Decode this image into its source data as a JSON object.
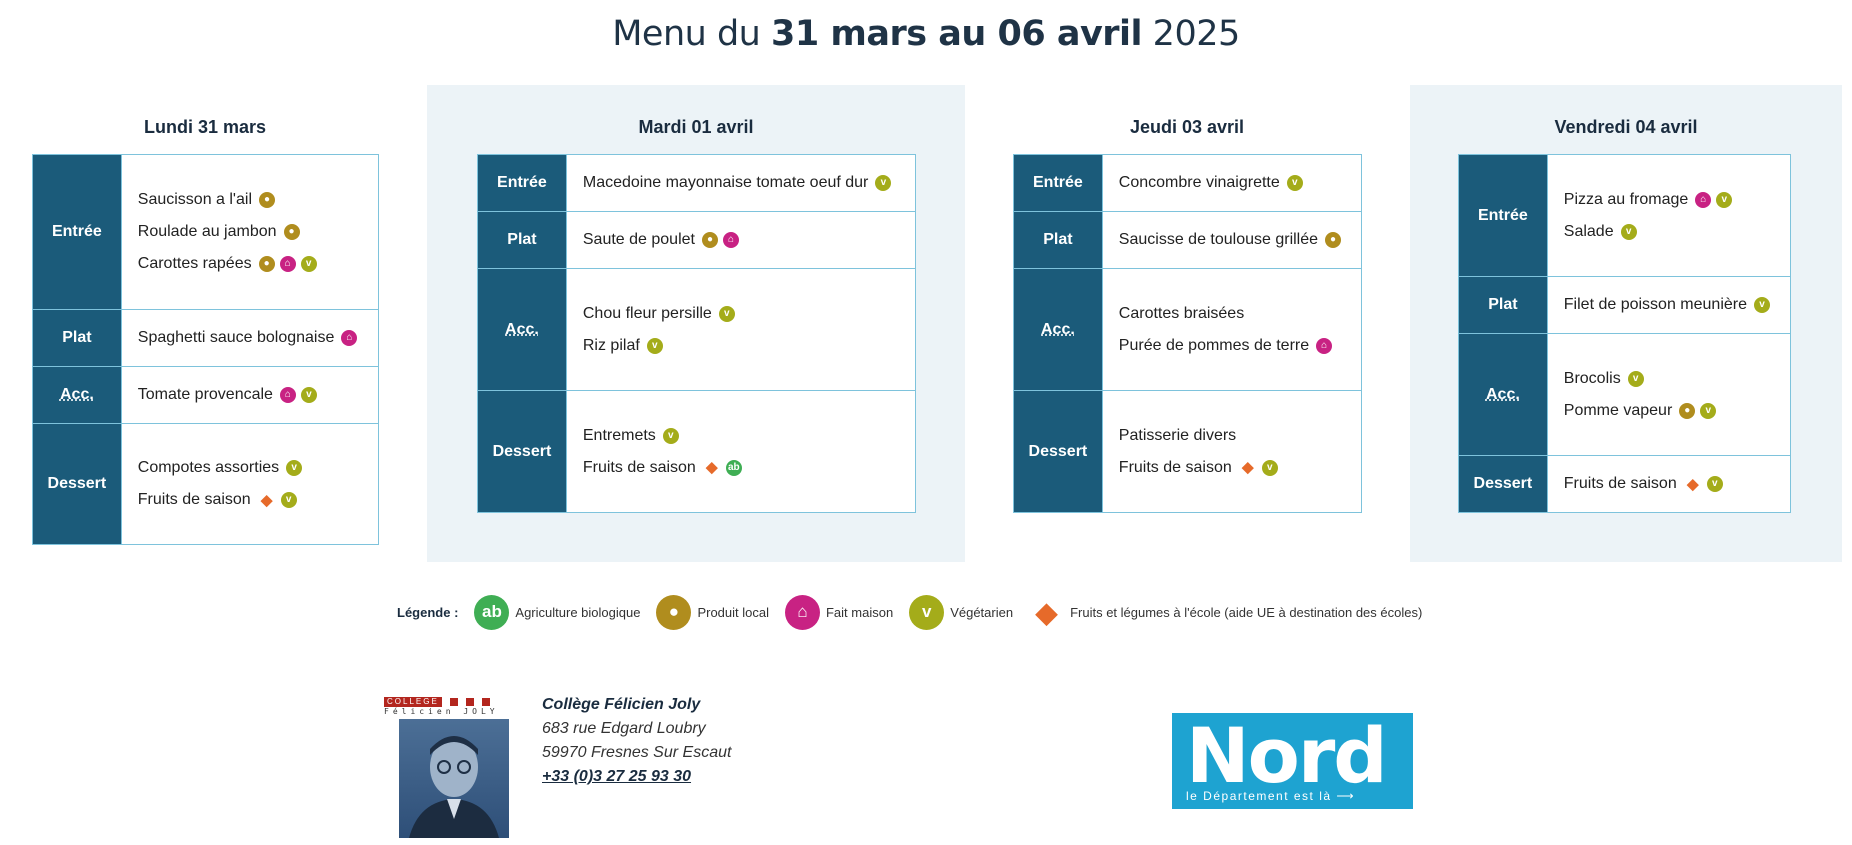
{
  "title": {
    "pre": "Menu du ",
    "range": "31 mars au 06 avril",
    "year": " 2025"
  },
  "days": [
    {
      "name": "Lundi 31 mars",
      "rows": [
        {
          "cat": "Entrée",
          "items": [
            {
              "text": "Saucisson a l'ail",
              "icons": [
                "local"
              ]
            },
            {
              "text": "Roulade au jambon",
              "icons": [
                "local"
              ]
            },
            {
              "text": "Carottes rapées",
              "icons": [
                "local",
                "maison",
                "veg"
              ]
            }
          ]
        },
        {
          "cat": "Plat",
          "items": [
            {
              "text": "Spaghetti sauce bolognaise",
              "icons": [
                "maison"
              ]
            }
          ]
        },
        {
          "cat": "Acc.",
          "items": [
            {
              "text": "Tomate provencale",
              "icons": [
                "maison",
                "veg"
              ]
            }
          ]
        },
        {
          "cat": "Dessert",
          "items": [
            {
              "text": "Compotes assorties",
              "icons": [
                "veg"
              ]
            },
            {
              "text": "Fruits de saison",
              "icons": [
                "fruit",
                "veg"
              ]
            }
          ]
        }
      ]
    },
    {
      "name": "Mardi 01 avril",
      "rows": [
        {
          "cat": "Entrée",
          "items": [
            {
              "text": "Macedoine mayonnaise tomate oeuf dur",
              "icons": [
                "veg"
              ]
            }
          ]
        },
        {
          "cat": "Plat",
          "items": [
            {
              "text": "Saute de poulet",
              "icons": [
                "local",
                "maison"
              ]
            }
          ]
        },
        {
          "cat": "Acc.",
          "items": [
            {
              "text": "Chou fleur persille",
              "icons": [
                "veg"
              ]
            },
            {
              "text": "Riz pilaf",
              "icons": [
                "veg"
              ]
            }
          ]
        },
        {
          "cat": "Dessert",
          "items": [
            {
              "text": "Entremets",
              "icons": [
                "veg"
              ]
            },
            {
              "text": "Fruits de saison",
              "icons": [
                "fruit",
                "bio"
              ]
            }
          ]
        }
      ]
    },
    {
      "name": "Jeudi 03 avril",
      "rows": [
        {
          "cat": "Entrée",
          "items": [
            {
              "text": "Concombre vinaigrette",
              "icons": [
                "veg"
              ]
            }
          ]
        },
        {
          "cat": "Plat",
          "items": [
            {
              "text": "Saucisse de toulouse grillée",
              "icons": [
                "local"
              ]
            }
          ]
        },
        {
          "cat": "Acc.",
          "items": [
            {
              "text": "Carottes braisées",
              "icons": []
            },
            {
              "text": "Purée de pommes de terre",
              "icons": [
                "maison"
              ]
            }
          ]
        },
        {
          "cat": "Dessert",
          "items": [
            {
              "text": "Patisserie divers",
              "icons": []
            },
            {
              "text": "Fruits de saison",
              "icons": [
                "fruit",
                "veg"
              ]
            }
          ]
        }
      ]
    },
    {
      "name": "Vendredi 04 avril",
      "rows": [
        {
          "cat": "Entrée",
          "items": [
            {
              "text": "Pizza au fromage",
              "icons": [
                "maison",
                "veg"
              ]
            },
            {
              "text": "Salade",
              "icons": [
                "veg"
              ]
            }
          ]
        },
        {
          "cat": "Plat",
          "items": [
            {
              "text": "Filet de poisson meunière",
              "icons": [
                "veg"
              ]
            }
          ]
        },
        {
          "cat": "Acc.",
          "items": [
            {
              "text": "Brocolis",
              "icons": [
                "veg"
              ]
            },
            {
              "text": "Pomme vapeur",
              "icons": [
                "local",
                "veg"
              ]
            }
          ]
        },
        {
          "cat": "Dessert",
          "items": [
            {
              "text": "Fruits de saison",
              "icons": [
                "fruit",
                "veg"
              ]
            }
          ]
        }
      ]
    }
  ],
  "legend": {
    "label": "Légende :",
    "items": [
      {
        "icon": "bio",
        "text": "Agriculture biologique"
      },
      {
        "icon": "local",
        "text": "Produit local"
      },
      {
        "icon": "maison",
        "text": "Fait maison"
      },
      {
        "icon": "veg",
        "text": "Végétarien"
      },
      {
        "icon": "fruit",
        "text": "Fruits et légumes à l'école (aide UE à destination des écoles)"
      }
    ]
  },
  "school": {
    "logo_top": "COLLEGE",
    "logo_name": "Félicien JOLY",
    "name": "Collège Félicien Joly",
    "address1": "683 rue Edgard Loubry",
    "address2": "59970 Fresnes Sur Escaut",
    "phone": "+33 (0)3 27 25 93 30"
  },
  "nord": {
    "big": "Nord",
    "sub": "le Département est là ⟶"
  },
  "icon_colors": {
    "bio": "#3fae54",
    "local": "#b08d1e",
    "maison": "#c82283",
    "veg": "#a4ac1a",
    "fruit": "#e66a2a"
  }
}
